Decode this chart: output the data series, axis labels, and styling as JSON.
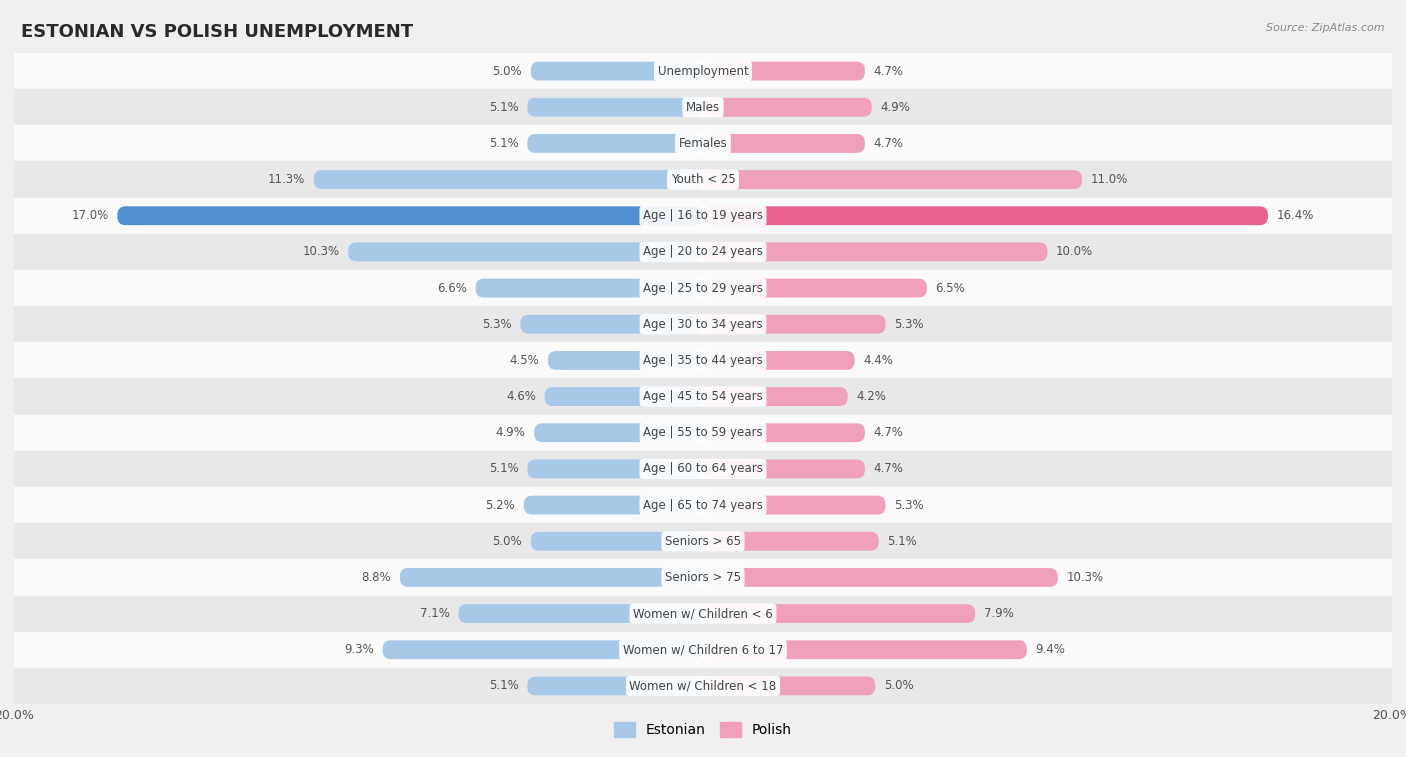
{
  "title": "ESTONIAN VS POLISH UNEMPLOYMENT",
  "source": "Source: ZipAtlas.com",
  "categories": [
    "Unemployment",
    "Males",
    "Females",
    "Youth < 25",
    "Age | 16 to 19 years",
    "Age | 20 to 24 years",
    "Age | 25 to 29 years",
    "Age | 30 to 34 years",
    "Age | 35 to 44 years",
    "Age | 45 to 54 years",
    "Age | 55 to 59 years",
    "Age | 60 to 64 years",
    "Age | 65 to 74 years",
    "Seniors > 65",
    "Seniors > 75",
    "Women w/ Children < 6",
    "Women w/ Children 6 to 17",
    "Women w/ Children < 18"
  ],
  "estonian": [
    5.0,
    5.1,
    5.1,
    11.3,
    17.0,
    10.3,
    6.6,
    5.3,
    4.5,
    4.6,
    4.9,
    5.1,
    5.2,
    5.0,
    8.8,
    7.1,
    9.3,
    5.1
  ],
  "polish": [
    4.7,
    4.9,
    4.7,
    11.0,
    16.4,
    10.0,
    6.5,
    5.3,
    4.4,
    4.2,
    4.7,
    4.7,
    5.3,
    5.1,
    10.3,
    7.9,
    9.4,
    5.0
  ],
  "estonian_color": "#a8c8e8",
  "polish_color": "#f0a0b8",
  "highlight_estonian_color": "#5090d0",
  "highlight_polish_color": "#e86090",
  "highlight_index": 4,
  "axis_max": 20.0,
  "background_color": "#f0f0f0",
  "row_bg_light": "#fafafa",
  "row_bg_dark": "#e8e8e8",
  "legend_estonian": "Estonian",
  "legend_polish": "Polish",
  "label_color": "#555555",
  "cat_label_color": "#444444"
}
